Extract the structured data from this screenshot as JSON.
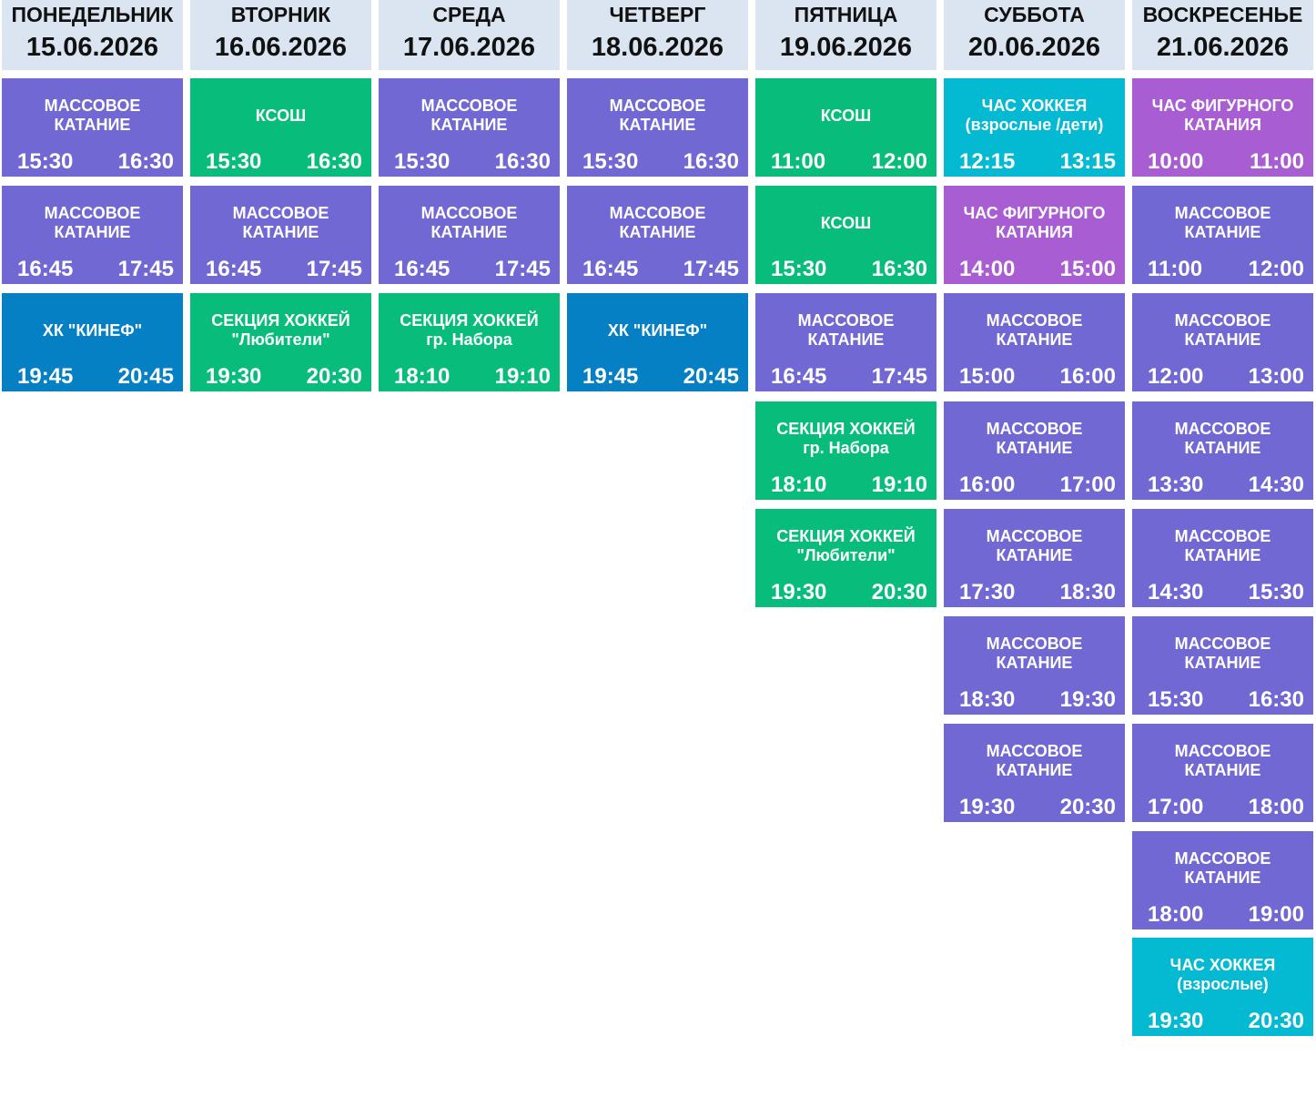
{
  "colors": {
    "header_bg": "#dbe5f1",
    "mass_skating": "#7168d3",
    "ksosh_and_sections": "#08bd7c",
    "kinef": "#0580c4",
    "hockey_hour": "#04b9d2",
    "figure_skating": "#a85ed2"
  },
  "days": [
    {
      "name": "ПОНЕДЕЛЬНИК",
      "date": "15.06.2026",
      "events": [
        {
          "title": [
            "МАССОВОЕ",
            "КАТАНИЕ"
          ],
          "start": "15:30",
          "end": "16:30",
          "color": "mass"
        },
        {
          "title": [
            "МАССОВОЕ",
            "КАТАНИЕ"
          ],
          "start": "16:45",
          "end": "17:45",
          "color": "mass"
        },
        {
          "title": [
            "ХК \"КИНЕФ\""
          ],
          "start": "19:45",
          "end": "20:45",
          "color": "kinef"
        }
      ]
    },
    {
      "name": "ВТОРНИК",
      "date": "16.06.2026",
      "events": [
        {
          "title": [
            "КСОШ"
          ],
          "start": "15:30",
          "end": "16:30",
          "color": "ksosh"
        },
        {
          "title": [
            "МАССОВОЕ",
            "КАТАНИЕ"
          ],
          "start": "16:45",
          "end": "17:45",
          "color": "mass"
        },
        {
          "title": [
            "СЕКЦИЯ ХОККЕЙ",
            "\"Любители\""
          ],
          "start": "19:30",
          "end": "20:30",
          "color": "ksosh"
        }
      ]
    },
    {
      "name": "СРЕДА",
      "date": "17.06.2026",
      "events": [
        {
          "title": [
            "МАССОВОЕ",
            "КАТАНИЕ"
          ],
          "start": "15:30",
          "end": "16:30",
          "color": "mass"
        },
        {
          "title": [
            "МАССОВОЕ",
            "КАТАНИЕ"
          ],
          "start": "16:45",
          "end": "17:45",
          "color": "mass"
        },
        {
          "title": [
            "СЕКЦИЯ ХОККЕЙ",
            "гр. Набора"
          ],
          "start": "18:10",
          "end": "19:10",
          "color": "ksosh"
        }
      ]
    },
    {
      "name": "ЧЕТВЕРГ",
      "date": "18.06.2026",
      "events": [
        {
          "title": [
            "МАССОВОЕ",
            "КАТАНИЕ"
          ],
          "start": "15:30",
          "end": "16:30",
          "color": "mass"
        },
        {
          "title": [
            "МАССОВОЕ",
            "КАТАНИЕ"
          ],
          "start": "16:45",
          "end": "17:45",
          "color": "mass"
        },
        {
          "title": [
            "ХК \"КИНЕФ\""
          ],
          "start": "19:45",
          "end": "20:45",
          "color": "kinef"
        }
      ]
    },
    {
      "name": "ПЯТНИЦА",
      "date": "19.06.2026",
      "events": [
        {
          "title": [
            "КСОШ"
          ],
          "start": "11:00",
          "end": "12:00",
          "color": "ksosh"
        },
        {
          "title": [
            "КСОШ"
          ],
          "start": "15:30",
          "end": "16:30",
          "color": "ksosh"
        },
        {
          "title": [
            "МАССОВОЕ",
            "КАТАНИЕ"
          ],
          "start": "16:45",
          "end": "17:45",
          "color": "mass"
        },
        {
          "title": [
            "СЕКЦИЯ ХОККЕЙ",
            "гр. Набора"
          ],
          "start": "18:10",
          "end": "19:10",
          "color": "ksosh"
        },
        {
          "title": [
            "СЕКЦИЯ ХОККЕЙ",
            "\"Любители\""
          ],
          "start": "19:30",
          "end": "20:30",
          "color": "ksosh"
        }
      ]
    },
    {
      "name": "СУББОТА",
      "date": "20.06.2026",
      "events": [
        {
          "title": [
            "ЧАС ХОККЕЯ",
            "(взрослые /дети)"
          ],
          "start": "12:15",
          "end": "13:15",
          "color": "hockey"
        },
        {
          "title": [
            "ЧАС ФИГУРНОГО",
            "КАТАНИЯ"
          ],
          "start": "14:00",
          "end": "15:00",
          "color": "figure"
        },
        {
          "title": [
            "МАССОВОЕ",
            "КАТАНИЕ"
          ],
          "start": "15:00",
          "end": "16:00",
          "color": "mass"
        },
        {
          "title": [
            "МАССОВОЕ",
            "КАТАНИЕ"
          ],
          "start": "16:00",
          "end": "17:00",
          "color": "mass"
        },
        {
          "title": [
            "МАССОВОЕ",
            "КАТАНИЕ"
          ],
          "start": "17:30",
          "end": "18:30",
          "color": "mass"
        },
        {
          "title": [
            "МАССОВОЕ",
            "КАТАНИЕ"
          ],
          "start": "18:30",
          "end": "19:30",
          "color": "mass"
        },
        {
          "title": [
            "МАССОВОЕ",
            "КАТАНИЕ"
          ],
          "start": "19:30",
          "end": "20:30",
          "color": "mass"
        }
      ]
    },
    {
      "name": "ВОСКРЕСЕНЬЕ",
      "date": "21.06.2026",
      "events": [
        {
          "title": [
            "ЧАС ФИГУРНОГО",
            "КАТАНИЯ"
          ],
          "start": "10:00",
          "end": "11:00",
          "color": "figure"
        },
        {
          "title": [
            "МАССОВОЕ",
            "КАТАНИЕ"
          ],
          "start": "11:00",
          "end": "12:00",
          "color": "mass"
        },
        {
          "title": [
            "МАССОВОЕ",
            "КАТАНИЕ"
          ],
          "start": "12:00",
          "end": "13:00",
          "color": "mass"
        },
        {
          "title": [
            "МАССОВОЕ",
            "КАТАНИЕ"
          ],
          "start": "13:30",
          "end": "14:30",
          "color": "mass"
        },
        {
          "title": [
            "МАССОВОЕ",
            "КАТАНИЕ"
          ],
          "start": "14:30",
          "end": "15:30",
          "color": "mass"
        },
        {
          "title": [
            "МАССОВОЕ",
            "КАТАНИЕ"
          ],
          "start": "15:30",
          "end": "16:30",
          "color": "mass"
        },
        {
          "title": [
            "МАССОВОЕ",
            "КАТАНИЕ"
          ],
          "start": "17:00",
          "end": "18:00",
          "color": "mass"
        },
        {
          "title": [
            "МАССОВОЕ",
            "КАТАНИЕ"
          ],
          "start": "18:00",
          "end": "19:00",
          "color": "mass"
        },
        {
          "title": [
            "ЧАС ХОККЕЯ",
            "(взрослые)"
          ],
          "start": "19:30",
          "end": "20:30",
          "color": "hockey"
        }
      ]
    }
  ]
}
